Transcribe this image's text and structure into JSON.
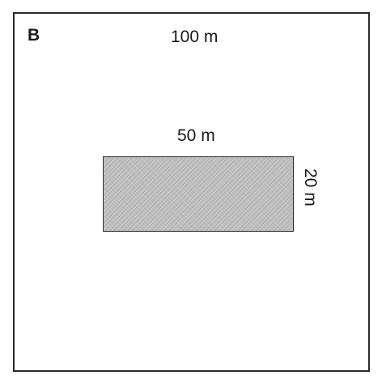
{
  "diagram": {
    "panel_letter": "B",
    "outer_square": {
      "side_label": "100 m"
    },
    "inner_rectangle": {
      "width_label": "50 m",
      "height_label": "20 m",
      "fill_color": "#bdbdbd"
    }
  }
}
